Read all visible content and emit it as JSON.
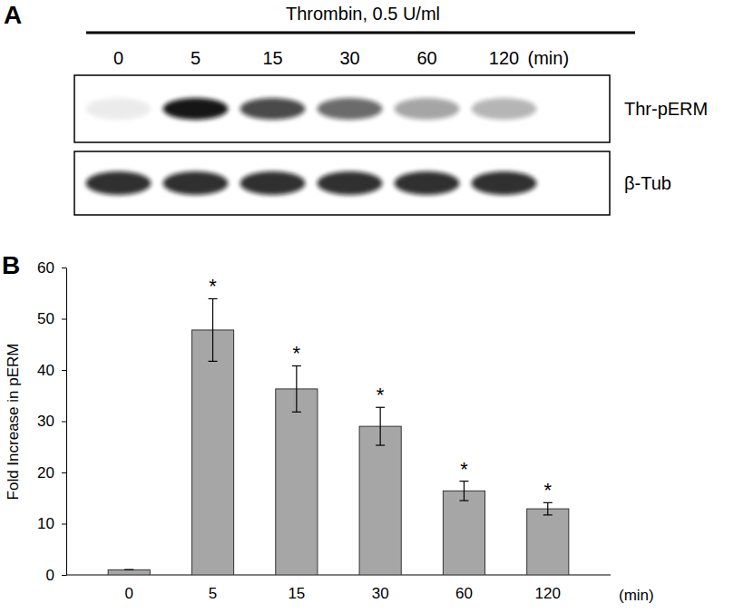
{
  "blot": {
    "panel_label": "A",
    "treatment": "Thrombin, 0.5 U/ml",
    "lanes": [
      "0",
      "5",
      "15",
      "30",
      "60",
      "120"
    ],
    "unit": "(min)",
    "rows": [
      "Thr-pERM",
      "β-Tub"
    ]
  },
  "chart_data": {
    "panel_label": "B",
    "type": "bar",
    "categories": [
      "0",
      "5",
      "15",
      "30",
      "60",
      "120"
    ],
    "x_unit": "(min)",
    "ylabel": "Fold Increase in pERM",
    "values": [
      1,
      47.8,
      36.3,
      29.0,
      16.4,
      12.9
    ],
    "errors": [
      0,
      6.1,
      4.5,
      3.7,
      1.9,
      1.2
    ],
    "color": "#a6a6a6",
    "ylim": [
      0,
      60
    ],
    "yticks": [
      0,
      10,
      20,
      30,
      40,
      50,
      60
    ],
    "annotations": [
      {
        "index": 1,
        "text": "*"
      },
      {
        "index": 2,
        "text": "*"
      },
      {
        "index": 3,
        "text": "*"
      },
      {
        "index": 4,
        "text": "*"
      },
      {
        "index": 5,
        "text": "*"
      }
    ]
  }
}
